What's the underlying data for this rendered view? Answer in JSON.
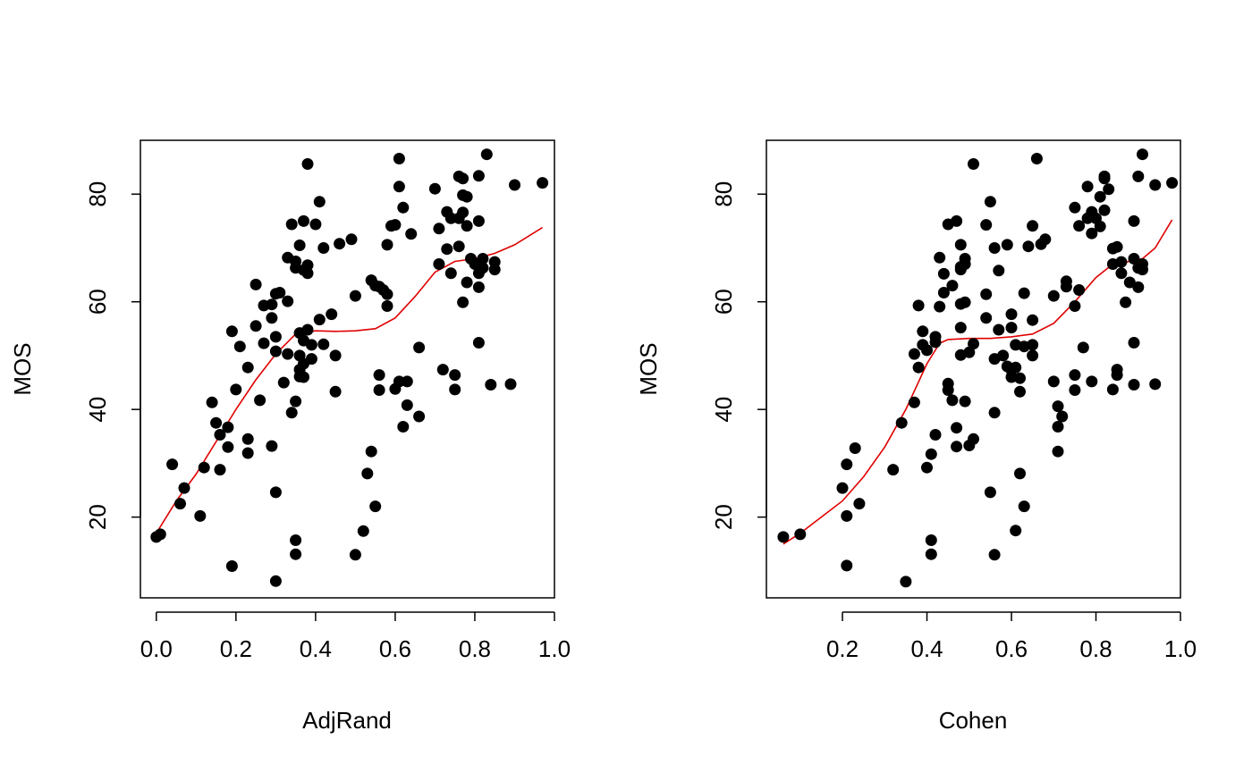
{
  "colors": {
    "points": "#000000",
    "smooth_line": "#e00000",
    "frame": "#000000",
    "background": "#ffffff"
  },
  "chart_data": [
    {
      "type": "scatter",
      "title": "",
      "xlabel": "AdjRand",
      "ylabel": "MOS",
      "xlim": [
        -0.04,
        1.0
      ],
      "ylim": [
        5,
        90
      ],
      "xticks": [
        0.0,
        0.2,
        0.4,
        0.6,
        0.8,
        1.0
      ],
      "xtick_labels": [
        "0.0",
        "0.2",
        "0.4",
        "0.6",
        "0.8",
        "1.0"
      ],
      "yticks": [
        20,
        40,
        60,
        80
      ],
      "ytick_labels": [
        "20",
        "40",
        "60",
        "80"
      ],
      "grid": false,
      "legend": "none",
      "points": [
        [
          0.0,
          16.3
        ],
        [
          0.01,
          16.8
        ],
        [
          0.04,
          29.8
        ],
        [
          0.06,
          22.5
        ],
        [
          0.07,
          25.4
        ],
        [
          0.11,
          20.2
        ],
        [
          0.12,
          29.2
        ],
        [
          0.14,
          41.3
        ],
        [
          0.15,
          37.5
        ],
        [
          0.16,
          35.3
        ],
        [
          0.16,
          28.8
        ],
        [
          0.18,
          36.7
        ],
        [
          0.18,
          33.0
        ],
        [
          0.19,
          54.5
        ],
        [
          0.19,
          10.9
        ],
        [
          0.2,
          43.7
        ],
        [
          0.21,
          51.7
        ],
        [
          0.23,
          34.5
        ],
        [
          0.23,
          31.9
        ],
        [
          0.23,
          47.8
        ],
        [
          0.25,
          63.2
        ],
        [
          0.25,
          55.5
        ],
        [
          0.26,
          41.7
        ],
        [
          0.27,
          59.3
        ],
        [
          0.27,
          52.3
        ],
        [
          0.29,
          59.5
        ],
        [
          0.29,
          57.0
        ],
        [
          0.3,
          53.5
        ],
        [
          0.3,
          61.5
        ],
        [
          0.3,
          50.8
        ],
        [
          0.29,
          33.2
        ],
        [
          0.3,
          24.6
        ],
        [
          0.3,
          8.1
        ],
        [
          0.31,
          61.7
        ],
        [
          0.32,
          45.0
        ],
        [
          0.33,
          68.2
        ],
        [
          0.33,
          60.1
        ],
        [
          0.33,
          50.3
        ],
        [
          0.34,
          39.4
        ],
        [
          0.34,
          74.4
        ],
        [
          0.35,
          66.3
        ],
        [
          0.35,
          67.5
        ],
        [
          0.35,
          41.5
        ],
        [
          0.35,
          15.7
        ],
        [
          0.35,
          13.1
        ],
        [
          0.36,
          70.5
        ],
        [
          0.36,
          54.2
        ],
        [
          0.36,
          50.0
        ],
        [
          0.36,
          47.4
        ],
        [
          0.36,
          46.1
        ],
        [
          0.37,
          75.0
        ],
        [
          0.37,
          65.9
        ],
        [
          0.37,
          52.8
        ],
        [
          0.37,
          48.5
        ],
        [
          0.37,
          46.0
        ],
        [
          0.38,
          66.8
        ],
        [
          0.38,
          65.3
        ],
        [
          0.38,
          54.8
        ],
        [
          0.38,
          85.6
        ],
        [
          0.39,
          52.0
        ],
        [
          0.39,
          49.4
        ],
        [
          0.4,
          74.4
        ],
        [
          0.41,
          78.6
        ],
        [
          0.41,
          56.7
        ],
        [
          0.42,
          70.0
        ],
        [
          0.42,
          52.1
        ],
        [
          0.44,
          57.7
        ],
        [
          0.45,
          50.0
        ],
        [
          0.45,
          43.3
        ],
        [
          0.46,
          70.8
        ],
        [
          0.49,
          71.6
        ],
        [
          0.5,
          61.1
        ],
        [
          0.5,
          13.0
        ],
        [
          0.52,
          17.4
        ],
        [
          0.53,
          28.1
        ],
        [
          0.54,
          32.2
        ],
        [
          0.54,
          64.0
        ],
        [
          0.55,
          63.0
        ],
        [
          0.55,
          22.0
        ],
        [
          0.56,
          62.8
        ],
        [
          0.56,
          46.4
        ],
        [
          0.56,
          43.6
        ],
        [
          0.57,
          62.2
        ],
        [
          0.58,
          59.2
        ],
        [
          0.58,
          61.4
        ],
        [
          0.58,
          70.6
        ],
        [
          0.59,
          74.1
        ],
        [
          0.6,
          74.3
        ],
        [
          0.6,
          43.8
        ],
        [
          0.61,
          86.6
        ],
        [
          0.61,
          81.4
        ],
        [
          0.61,
          45.2
        ],
        [
          0.62,
          77.5
        ],
        [
          0.62,
          36.8
        ],
        [
          0.63,
          40.8
        ],
        [
          0.63,
          45.2
        ],
        [
          0.64,
          72.6
        ],
        [
          0.66,
          51.5
        ],
        [
          0.66,
          38.7
        ],
        [
          0.7,
          81.0
        ],
        [
          0.71,
          67.0
        ],
        [
          0.71,
          73.6
        ],
        [
          0.72,
          47.4
        ],
        [
          0.73,
          76.7
        ],
        [
          0.73,
          69.8
        ],
        [
          0.74,
          75.5
        ],
        [
          0.74,
          65.3
        ],
        [
          0.75,
          46.4
        ],
        [
          0.75,
          43.7
        ],
        [
          0.76,
          83.3
        ],
        [
          0.76,
          75.5
        ],
        [
          0.76,
          70.3
        ],
        [
          0.77,
          82.9
        ],
        [
          0.77,
          79.8
        ],
        [
          0.77,
          76.6
        ],
        [
          0.77,
          59.9
        ],
        [
          0.78,
          79.5
        ],
        [
          0.78,
          74.1
        ],
        [
          0.78,
          63.6
        ],
        [
          0.79,
          68.0
        ],
        [
          0.8,
          67.0
        ],
        [
          0.81,
          83.4
        ],
        [
          0.81,
          75.0
        ],
        [
          0.81,
          65.3
        ],
        [
          0.81,
          62.7
        ],
        [
          0.81,
          52.4
        ],
        [
          0.82,
          68.0
        ],
        [
          0.82,
          66.3
        ],
        [
          0.83,
          87.4
        ],
        [
          0.84,
          44.6
        ],
        [
          0.85,
          67.4
        ],
        [
          0.85,
          66.0
        ],
        [
          0.89,
          44.7
        ],
        [
          0.9,
          81.7
        ],
        [
          0.97,
          82.1
        ]
      ],
      "smooth": [
        [
          0.0,
          17.0
        ],
        [
          0.05,
          23.0
        ],
        [
          0.1,
          28.0
        ],
        [
          0.15,
          34.0
        ],
        [
          0.2,
          40.0
        ],
        [
          0.25,
          45.5
        ],
        [
          0.3,
          50.3
        ],
        [
          0.35,
          54.0
        ],
        [
          0.4,
          54.6
        ],
        [
          0.45,
          54.5
        ],
        [
          0.5,
          54.6
        ],
        [
          0.55,
          55.0
        ],
        [
          0.6,
          57.0
        ],
        [
          0.65,
          61.0
        ],
        [
          0.7,
          65.5
        ],
        [
          0.75,
          67.5
        ],
        [
          0.8,
          68.0
        ],
        [
          0.85,
          69.0
        ],
        [
          0.9,
          70.6
        ],
        [
          0.97,
          73.8
        ]
      ]
    },
    {
      "type": "scatter",
      "title": "",
      "xlabel": "Cohen",
      "ylabel": "MOS",
      "xlim": [
        0.02,
        1.0
      ],
      "ylim": [
        5,
        90
      ],
      "xticks": [
        0.2,
        0.4,
        0.6,
        0.8,
        1.0
      ],
      "xtick_labels": [
        "0.2",
        "0.4",
        "0.6",
        "0.8",
        "1.0"
      ],
      "yticks": [
        20,
        40,
        60,
        80
      ],
      "ytick_labels": [
        "20",
        "40",
        "60",
        "80"
      ],
      "grid": false,
      "legend": "none",
      "points": [
        [
          0.06,
          16.3
        ],
        [
          0.1,
          16.8
        ],
        [
          0.2,
          25.4
        ],
        [
          0.21,
          20.2
        ],
        [
          0.21,
          29.8
        ],
        [
          0.21,
          11.0
        ],
        [
          0.23,
          32.8
        ],
        [
          0.24,
          22.5
        ],
        [
          0.32,
          28.8
        ],
        [
          0.34,
          37.5
        ],
        [
          0.35,
          8.0
        ],
        [
          0.37,
          50.3
        ],
        [
          0.37,
          41.3
        ],
        [
          0.38,
          59.3
        ],
        [
          0.38,
          47.8
        ],
        [
          0.39,
          54.5
        ],
        [
          0.39,
          52.0
        ],
        [
          0.4,
          51.0
        ],
        [
          0.4,
          29.2
        ],
        [
          0.41,
          31.7
        ],
        [
          0.41,
          15.7
        ],
        [
          0.41,
          13.1
        ],
        [
          0.42,
          53.5
        ],
        [
          0.42,
          52.5
        ],
        [
          0.42,
          35.3
        ],
        [
          0.43,
          68.2
        ],
        [
          0.43,
          59.1
        ],
        [
          0.44,
          65.2
        ],
        [
          0.44,
          61.7
        ],
        [
          0.45,
          74.4
        ],
        [
          0.45,
          44.8
        ],
        [
          0.45,
          43.6
        ],
        [
          0.46,
          63.0
        ],
        [
          0.46,
          41.7
        ],
        [
          0.47,
          75.0
        ],
        [
          0.47,
          36.6
        ],
        [
          0.47,
          33.1
        ],
        [
          0.48,
          66.5
        ],
        [
          0.48,
          55.2
        ],
        [
          0.48,
          59.6
        ],
        [
          0.48,
          50.1
        ],
        [
          0.48,
          66.0
        ],
        [
          0.48,
          70.6
        ],
        [
          0.49,
          68.0
        ],
        [
          0.49,
          67.0
        ],
        [
          0.49,
          59.9
        ],
        [
          0.49,
          41.5
        ],
        [
          0.5,
          50.6
        ],
        [
          0.5,
          33.3
        ],
        [
          0.51,
          34.5
        ],
        [
          0.51,
          85.6
        ],
        [
          0.51,
          52.2
        ],
        [
          0.54,
          74.3
        ],
        [
          0.54,
          61.4
        ],
        [
          0.54,
          57.0
        ],
        [
          0.55,
          78.6
        ],
        [
          0.55,
          24.6
        ],
        [
          0.56,
          13.0
        ],
        [
          0.56,
          49.4
        ],
        [
          0.56,
          39.4
        ],
        [
          0.56,
          70.0
        ],
        [
          0.57,
          65.8
        ],
        [
          0.57,
          54.8
        ],
        [
          0.58,
          50.0
        ],
        [
          0.59,
          70.6
        ],
        [
          0.59,
          48.0
        ],
        [
          0.6,
          47.3
        ],
        [
          0.6,
          46.0
        ],
        [
          0.6,
          55.2
        ],
        [
          0.6,
          57.7
        ],
        [
          0.61,
          52.0
        ],
        [
          0.61,
          17.5
        ],
        [
          0.61,
          47.8
        ],
        [
          0.62,
          45.8
        ],
        [
          0.62,
          43.3
        ],
        [
          0.62,
          28.1
        ],
        [
          0.63,
          61.6
        ],
        [
          0.63,
          51.7
        ],
        [
          0.63,
          22.0
        ],
        [
          0.64,
          70.3
        ],
        [
          0.65,
          74.1
        ],
        [
          0.65,
          56.6
        ],
        [
          0.65,
          52.0
        ],
        [
          0.65,
          50.0
        ],
        [
          0.66,
          86.6
        ],
        [
          0.67,
          70.7
        ],
        [
          0.68,
          71.6
        ],
        [
          0.7,
          61.1
        ],
        [
          0.7,
          45.2
        ],
        [
          0.71,
          40.6
        ],
        [
          0.71,
          36.8
        ],
        [
          0.71,
          32.2
        ],
        [
          0.72,
          38.7
        ],
        [
          0.73,
          62.8
        ],
        [
          0.73,
          63.8
        ],
        [
          0.75,
          77.5
        ],
        [
          0.75,
          59.2
        ],
        [
          0.75,
          46.4
        ],
        [
          0.75,
          43.6
        ],
        [
          0.76,
          74.1
        ],
        [
          0.76,
          62.2
        ],
        [
          0.77,
          51.5
        ],
        [
          0.78,
          81.4
        ],
        [
          0.78,
          75.5
        ],
        [
          0.79,
          76.7
        ],
        [
          0.79,
          72.7
        ],
        [
          0.79,
          45.2
        ],
        [
          0.8,
          75.5
        ],
        [
          0.81,
          79.5
        ],
        [
          0.81,
          74.0
        ],
        [
          0.82,
          83.3
        ],
        [
          0.82,
          77.0
        ],
        [
          0.82,
          82.9
        ],
        [
          0.83,
          80.9
        ],
        [
          0.84,
          69.9
        ],
        [
          0.84,
          67.0
        ],
        [
          0.84,
          43.7
        ],
        [
          0.85,
          70.2
        ],
        [
          0.85,
          47.4
        ],
        [
          0.85,
          46.4
        ],
        [
          0.86,
          65.3
        ],
        [
          0.86,
          67.4
        ],
        [
          0.87,
          59.9
        ],
        [
          0.88,
          63.6
        ],
        [
          0.89,
          75.0
        ],
        [
          0.89,
          68.0
        ],
        [
          0.89,
          52.4
        ],
        [
          0.89,
          44.6
        ],
        [
          0.9,
          83.3
        ],
        [
          0.9,
          66.3
        ],
        [
          0.9,
          62.7
        ],
        [
          0.91,
          87.4
        ],
        [
          0.91,
          67.0
        ],
        [
          0.91,
          66.0
        ],
        [
          0.94,
          44.7
        ],
        [
          0.94,
          81.7
        ],
        [
          0.98,
          82.1
        ]
      ],
      "smooth": [
        [
          0.06,
          15.0
        ],
        [
          0.1,
          17.0
        ],
        [
          0.15,
          20.0
        ],
        [
          0.2,
          23.0
        ],
        [
          0.25,
          27.5
        ],
        [
          0.3,
          33.0
        ],
        [
          0.35,
          40.0
        ],
        [
          0.4,
          48.5
        ],
        [
          0.43,
          52.3
        ],
        [
          0.45,
          53.0
        ],
        [
          0.5,
          53.2
        ],
        [
          0.55,
          53.2
        ],
        [
          0.6,
          53.5
        ],
        [
          0.65,
          54.0
        ],
        [
          0.7,
          56.0
        ],
        [
          0.75,
          60.0
        ],
        [
          0.8,
          64.5
        ],
        [
          0.84,
          67.0
        ],
        [
          0.88,
          67.5
        ],
        [
          0.91,
          68.0
        ],
        [
          0.94,
          70.0
        ],
        [
          0.98,
          75.2
        ]
      ]
    }
  ]
}
